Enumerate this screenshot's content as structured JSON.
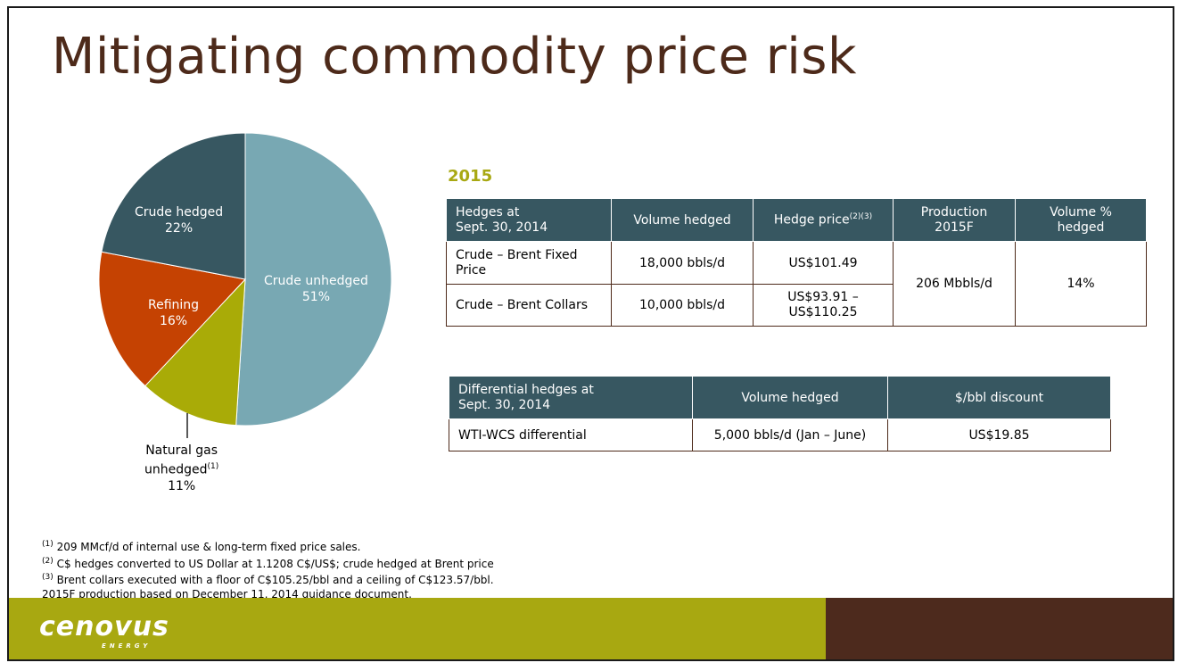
{
  "title": "Mitigating commodity price risk",
  "year": "2015",
  "chart_data": {
    "type": "pie",
    "slices": [
      {
        "label": "Crude unhedged",
        "pct_text": "51%",
        "value": 51,
        "color": "#78a8b3"
      },
      {
        "label": "Natural gas unhedged",
        "pct_text": "11%",
        "value": 11,
        "color": "#a9ab07"
      },
      {
        "label": "Refining",
        "pct_text": "16%",
        "value": 16,
        "color": "#c54202"
      },
      {
        "label": "Crude hedged",
        "pct_text": "22%",
        "value": 22,
        "color": "#375761"
      }
    ],
    "gas_label_line1": "Natural gas",
    "gas_label_line2": "unhedged",
    "gas_label_sup": "(1)"
  },
  "hedge_table": {
    "headers": {
      "col1_line1": "Hedges at",
      "col1_line2": "Sept. 30, 2014",
      "col2": "Volume hedged",
      "col3": "Hedge price",
      "col3_sup": "(2)(3)",
      "col4_line1": "Production",
      "col4_line2": "2015F",
      "col5_line1": "Volume %",
      "col5_line2": "hedged"
    },
    "rows": [
      {
        "name_line1": "Crude – Brent Fixed",
        "name_line2": "Price",
        "volume": "18,000 bbls/d",
        "price": "US$101.49"
      },
      {
        "name": "Crude – Brent Collars",
        "volume": "10,000 bbls/d",
        "price_line1": "US$93.91 –",
        "price_line2": "US$110.25"
      }
    ],
    "production": "206 Mbbls/d",
    "pct_hedged": "14%"
  },
  "diff_table": {
    "headers": {
      "col1_line1": "Differential hedges at",
      "col1_line2": "Sept. 30, 2014",
      "col2": "Volume hedged",
      "col3": "$/bbl discount"
    },
    "row": {
      "name": "WTI-WCS differential",
      "volume": "5,000 bbls/d (Jan – June)",
      "discount": "US$19.85"
    }
  },
  "footnotes": [
    {
      "sup": "(1)",
      "text": " 209 MMcf/d of internal use & long-term fixed price sales."
    },
    {
      "sup": "(2)",
      "text": " C$ hedges converted to US Dollar at 1.1208 C$/US$; crude hedged at Brent price"
    },
    {
      "sup": "(3)",
      "text": " Brent collars executed with a floor of C$105.25/bbl and a ceiling of C$123.57/bbl."
    },
    {
      "sup": "",
      "text": "2015F production based on December 11, 2014 guidance document."
    }
  ],
  "footer": {
    "brand": "cenovus",
    "brand_sub": "ENERGY",
    "green": "#a8a811",
    "brown": "#4d2a1d"
  }
}
